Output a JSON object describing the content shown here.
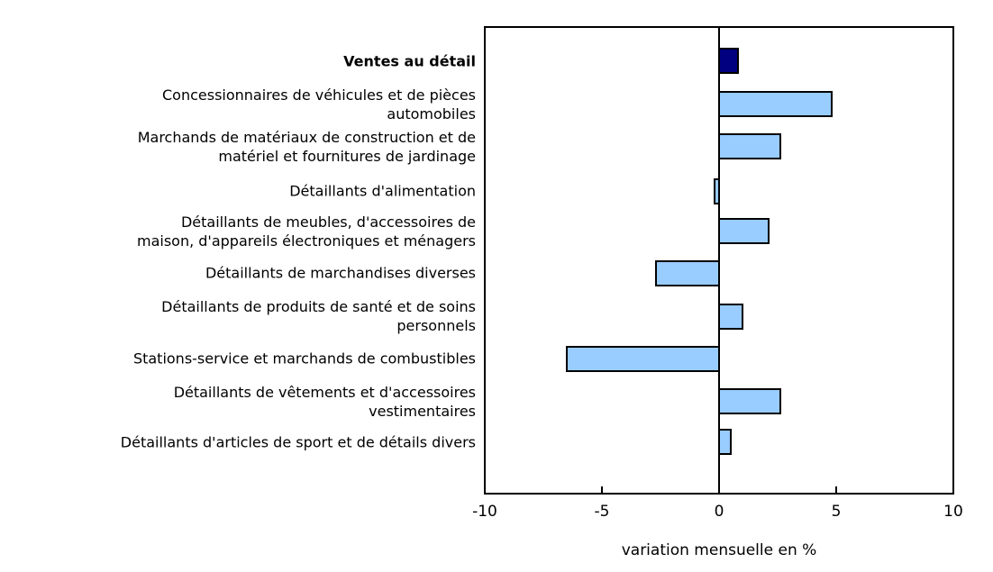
{
  "chart_data": {
    "type": "bar",
    "orientation": "horizontal",
    "title": "",
    "xlabel": "variation mensuelle en %",
    "xlim": [
      -10,
      10
    ],
    "xticks": [
      -10,
      -5,
      0,
      5,
      10
    ],
    "grid": false,
    "legend": false,
    "highlight_index": 0,
    "categories": [
      "Ventes au détail",
      "Concessionnaires de véhicules et de pièces\nautomobiles",
      "Marchands de matériaux de construction et de\nmatériel et fournitures de jardinage",
      "Détaillants d'alimentation",
      "Détaillants de meubles, d'accessoires de\nmaison, d'appareils électroniques et ménagers",
      "Détaillants de marchandises diverses",
      "Détaillants de produits de santé et de soins\npersonnels",
      "Stations-service et marchands de combustibles",
      "Détaillants de vêtements et d'accessoires\nvestimentaires",
      "Détaillants d'articles de sport et de détails divers"
    ],
    "values": [
      0.8,
      4.8,
      2.6,
      -0.2,
      2.1,
      -2.7,
      1.0,
      -6.5,
      2.6,
      0.5
    ],
    "colors": {
      "highlight_bar": "#000080",
      "default_bar": "#99ccff",
      "bar_border": "#000000",
      "frame": "#000000",
      "text": "#000000",
      "background": "#ffffff"
    }
  }
}
